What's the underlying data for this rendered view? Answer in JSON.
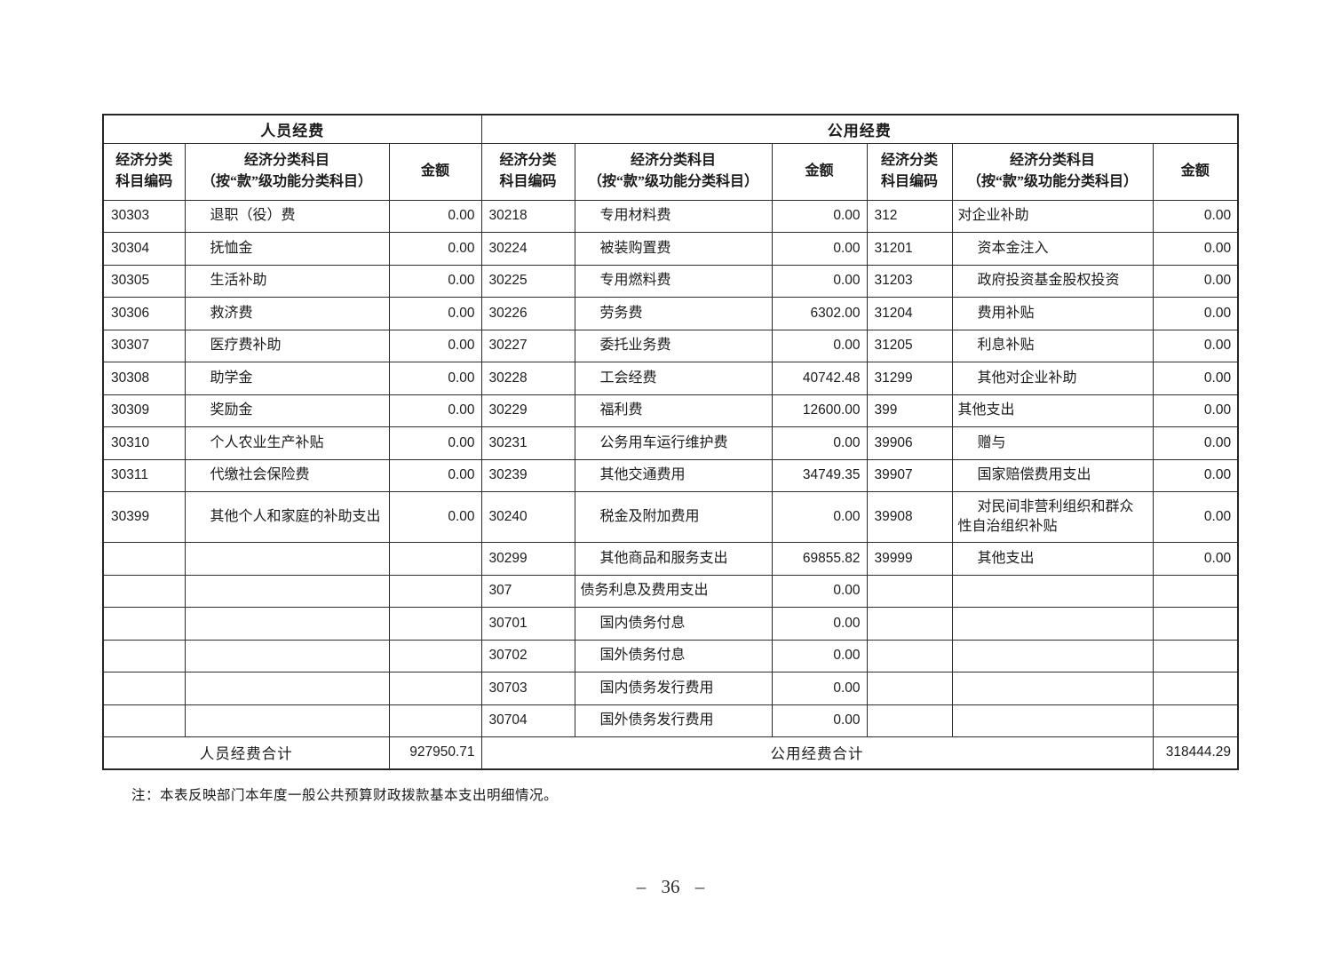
{
  "table": {
    "groups": [
      {
        "title": "人员经费"
      },
      {
        "title": "公用经费"
      }
    ],
    "col_headers": {
      "code": "经济分类\n科目编码",
      "subject": "经济分类科目\n（按“款”级功能分类科目）",
      "amount": "金额"
    },
    "row_count": 16,
    "sections": [
      {
        "id": "personnel",
        "rows": [
          {
            "code": "30303",
            "name": "退职（役）费",
            "indent": true,
            "amount": "0.00"
          },
          {
            "code": "30304",
            "name": "抚恤金",
            "indent": true,
            "amount": "0.00"
          },
          {
            "code": "30305",
            "name": "生活补助",
            "indent": true,
            "amount": "0.00"
          },
          {
            "code": "30306",
            "name": "救济费",
            "indent": true,
            "amount": "0.00"
          },
          {
            "code": "30307",
            "name": "医疗费补助",
            "indent": true,
            "amount": "0.00"
          },
          {
            "code": "30308",
            "name": "助学金",
            "indent": true,
            "amount": "0.00"
          },
          {
            "code": "30309",
            "name": "奖励金",
            "indent": true,
            "amount": "0.00"
          },
          {
            "code": "30310",
            "name": "个人农业生产补贴",
            "indent": true,
            "amount": "0.00"
          },
          {
            "code": "30311",
            "name": "代缴社会保险费",
            "indent": true,
            "amount": "0.00"
          },
          {
            "code": "30399",
            "name": "其他个人和家庭的补助支出",
            "indent": true,
            "tall": true,
            "amount": "0.00"
          }
        ],
        "total_label": "人员经费合计",
        "total_amount": "927950.71"
      },
      {
        "id": "public-middle",
        "rows": [
          {
            "code": "30218",
            "name": "专用材料费",
            "indent": true,
            "amount": "0.00"
          },
          {
            "code": "30224",
            "name": "被装购置费",
            "indent": true,
            "amount": "0.00"
          },
          {
            "code": "30225",
            "name": "专用燃料费",
            "indent": true,
            "amount": "0.00"
          },
          {
            "code": "30226",
            "name": "劳务费",
            "indent": true,
            "amount": "6302.00"
          },
          {
            "code": "30227",
            "name": "委托业务费",
            "indent": true,
            "amount": "0.00"
          },
          {
            "code": "30228",
            "name": "工会经费",
            "indent": true,
            "amount": "40742.48"
          },
          {
            "code": "30229",
            "name": "福利费",
            "indent": true,
            "amount": "12600.00"
          },
          {
            "code": "30231",
            "name": "公务用车运行维护费",
            "indent": true,
            "amount": "0.00"
          },
          {
            "code": "30239",
            "name": "其他交通费用",
            "indent": true,
            "amount": "34749.35"
          },
          {
            "code": "30240",
            "name": "税金及附加费用",
            "indent": true,
            "amount": "0.00"
          },
          {
            "code": "30299",
            "name": "其他商品和服务支出",
            "indent": true,
            "amount": "69855.82"
          },
          {
            "code": "307",
            "name": "债务利息及费用支出",
            "indent": false,
            "amount": "0.00"
          },
          {
            "code": "30701",
            "name": "国内债务付息",
            "indent": true,
            "amount": "0.00"
          },
          {
            "code": "30702",
            "name": "国外债务付息",
            "indent": true,
            "amount": "0.00"
          },
          {
            "code": "30703",
            "name": "国内债务发行费用",
            "indent": true,
            "amount": "0.00"
          },
          {
            "code": "30704",
            "name": "国外债务发行费用",
            "indent": true,
            "amount": "0.00"
          }
        ]
      },
      {
        "id": "public-right",
        "rows": [
          {
            "code": "312",
            "name": "对企业补助",
            "indent": false,
            "amount": "0.00"
          },
          {
            "code": "31201",
            "name": "资本金注入",
            "indent": true,
            "amount": "0.00"
          },
          {
            "code": "31203",
            "name": "政府投资基金股权投资",
            "indent": true,
            "amount": "0.00"
          },
          {
            "code": "31204",
            "name": "费用补贴",
            "indent": true,
            "amount": "0.00"
          },
          {
            "code": "31205",
            "name": "利息补贴",
            "indent": true,
            "amount": "0.00"
          },
          {
            "code": "31299",
            "name": "其他对企业补助",
            "indent": true,
            "amount": "0.00"
          },
          {
            "code": "399",
            "name": "其他支出",
            "indent": false,
            "amount": "0.00"
          },
          {
            "code": "39906",
            "name": "赠与",
            "indent": true,
            "amount": "0.00"
          },
          {
            "code": "39907",
            "name": "国家赔偿费用支出",
            "indent": true,
            "amount": "0.00"
          },
          {
            "code": "39908",
            "name": "对民间非营利组织和群众性自治组织补贴",
            "indent": true,
            "tall": true,
            "amount": "0.00"
          },
          {
            "code": "39999",
            "name": "其他支出",
            "indent": true,
            "amount": "0.00"
          }
        ],
        "total_label": "公用经费合计",
        "total_amount": "318444.29"
      }
    ]
  },
  "footer": {
    "note": "注：本表反映部门本年度一般公共预算财政拨款基本支出明细情况。",
    "page_number": "– 36 –"
  }
}
